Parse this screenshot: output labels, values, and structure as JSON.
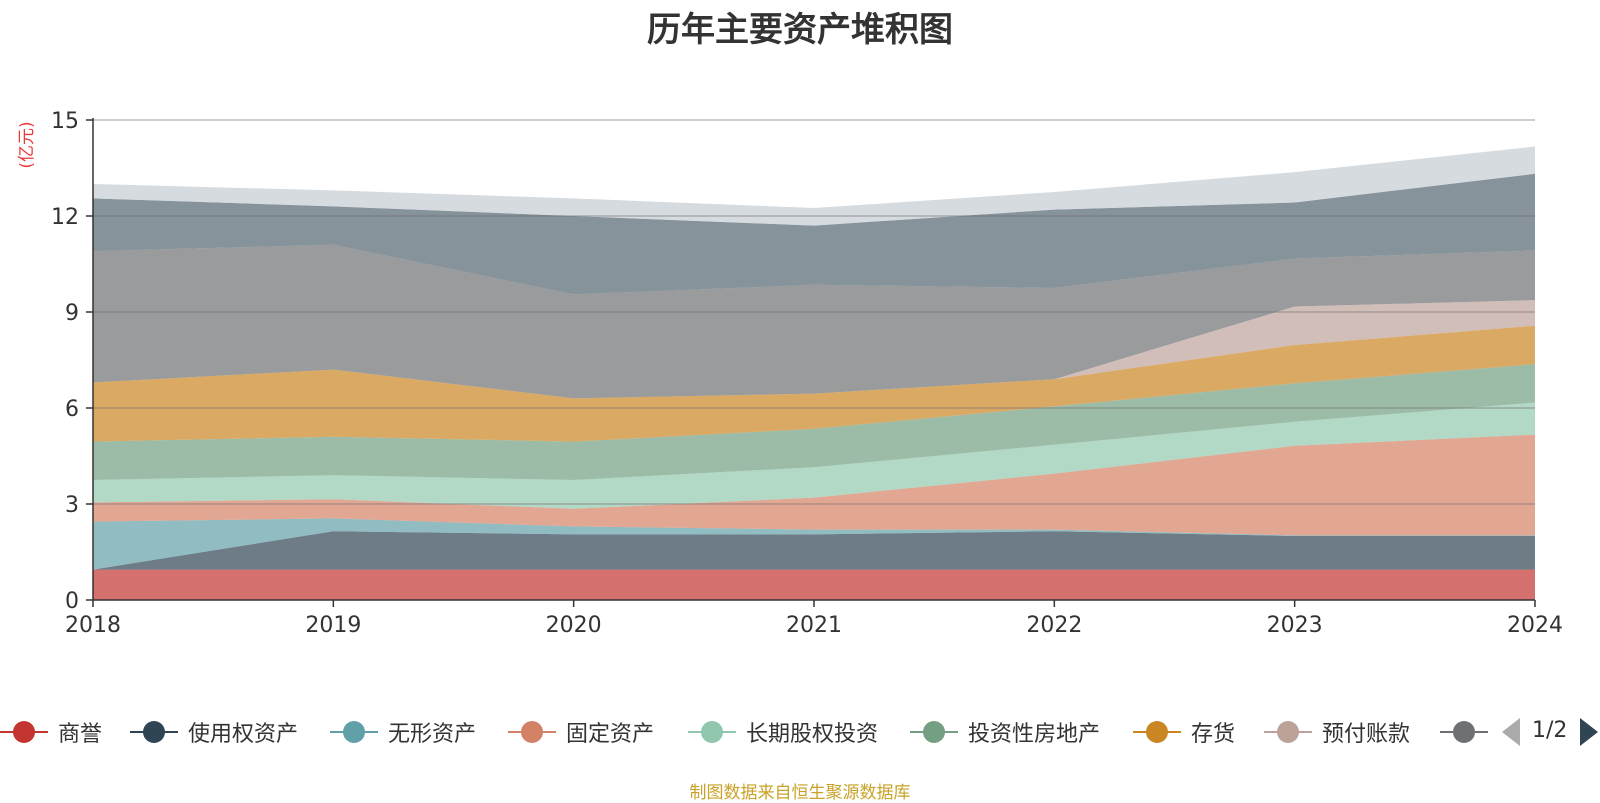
{
  "chart_data": {
    "type": "area",
    "stacked": true,
    "title": "历年主要资产堆积图",
    "ylabel": "(亿元)",
    "xlabel": "",
    "categories": [
      "2018",
      "2019",
      "2020",
      "2021",
      "2022",
      "2023",
      "2024"
    ],
    "ylim": [
      0,
      15
    ],
    "yticks": [
      "0",
      "3",
      "6",
      "9",
      "12",
      "15"
    ],
    "grid": true,
    "legend_position": "bottom",
    "series": [
      {
        "name": "商誉",
        "color": "#c23531",
        "values": [
          0.95,
          0.95,
          0.95,
          0.95,
          0.95,
          0.95,
          0.95
        ]
      },
      {
        "name": "使用权资产",
        "color": "#2f4554",
        "values": [
          0.0,
          1.2,
          1.1,
          1.1,
          1.2,
          1.05,
          1.05
        ]
      },
      {
        "name": "无形资产",
        "color": "#61a0a8",
        "values": [
          1.5,
          0.4,
          0.25,
          0.15,
          0.05,
          0.02,
          0.02
        ]
      },
      {
        "name": "固定资产",
        "color": "#d48265",
        "values": [
          0.6,
          0.6,
          0.55,
          1.0,
          1.75,
          2.8,
          3.15
        ]
      },
      {
        "name": "长期股权投资",
        "color": "#91c7ae",
        "values": [
          0.7,
          0.75,
          0.9,
          0.95,
          0.9,
          0.75,
          1.0
        ]
      },
      {
        "name": "投资性房地产",
        "color": "#749f83",
        "values": [
          1.2,
          1.2,
          1.2,
          1.2,
          1.2,
          1.2,
          1.2
        ]
      },
      {
        "name": "存货",
        "color": "#ca8622",
        "values": [
          1.85,
          2.1,
          1.35,
          1.1,
          0.85,
          1.2,
          1.2
        ]
      },
      {
        "name": "预付账款",
        "color": "#bda29a",
        "values": [
          0.0,
          0.0,
          0.0,
          0.0,
          0.0,
          1.2,
          0.8
        ]
      },
      {
        "name": "",
        "color": "#6e7074",
        "values": [
          4.1,
          3.9,
          3.25,
          3.4,
          2.85,
          1.5,
          1.55
        ]
      },
      {
        "name": "",
        "color": "#546570",
        "values": [
          1.65,
          1.2,
          2.45,
          1.85,
          2.45,
          1.75,
          2.4
        ]
      },
      {
        "name": "",
        "color": "#c4ccd3",
        "values": [
          0.45,
          0.5,
          0.55,
          0.55,
          0.55,
          0.95,
          0.85
        ]
      }
    ]
  },
  "legend": {
    "items": [
      {
        "label": "商誉",
        "color": "#c23531"
      },
      {
        "label": "使用权资产",
        "color": "#2f4554"
      },
      {
        "label": "无形资产",
        "color": "#61a0a8"
      },
      {
        "label": "固定资产",
        "color": "#d48265"
      },
      {
        "label": "长期股权投资",
        "color": "#91c7ae"
      },
      {
        "label": "投资性房地产",
        "color": "#749f83"
      },
      {
        "label": "存货",
        "color": "#ca8622"
      },
      {
        "label": "预付账款",
        "color": "#bda29a"
      },
      {
        "label": "",
        "color": "#6e7074"
      }
    ],
    "page": "1/2"
  },
  "source": "制图数据来自恒生聚源数据库"
}
